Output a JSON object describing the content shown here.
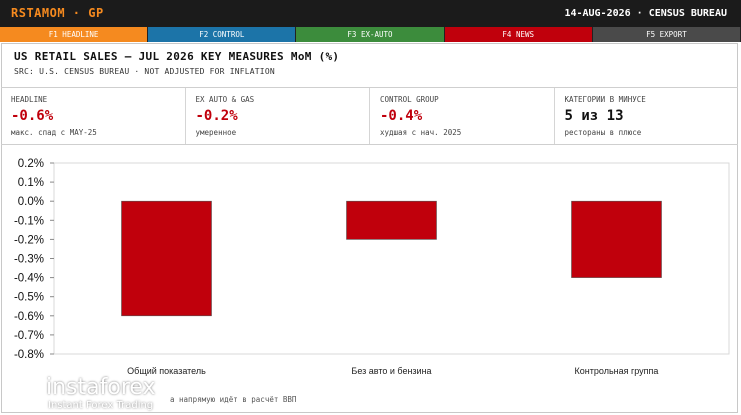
{
  "header": {
    "brand": "RSTAMOM · GP",
    "dateinfo": "14-AUG-2026 · CENSUS BUREAU"
  },
  "tabs": [
    {
      "label": "F1 HEADLINE",
      "color": "#f58a1f"
    },
    {
      "label": "F2 CONTROL",
      "color": "#1c74a8"
    },
    {
      "label": "F3 EX-AUTO",
      "color": "#3c8c3c"
    },
    {
      "label": "F4 NEWS",
      "color": "#c0000c"
    },
    {
      "label": "F5 EXPORT",
      "color": "#4a4a4a"
    }
  ],
  "panel": {
    "title": "US RETAIL SALES — JUL 2026 KEY MEASURES MoM (%)",
    "subtitle": "SRC: U.S. CENSUS BUREAU · NOT ADJUSTED FOR INFLATION"
  },
  "metrics": [
    {
      "label": "HEADLINE",
      "value": "-0.6%",
      "note": "макс. спад с MAY-25"
    },
    {
      "label": "EX AUTO & GAS",
      "value": "-0.2%",
      "note": "умеренное"
    },
    {
      "label": "CONTROL GROUP",
      "value": "-0.4%",
      "note": "худшая с нач. 2025"
    },
    {
      "label": "КАТЕГОРИИ В МИНУСЕ",
      "value": "5 из 13",
      "note": "рестораны в плюсе"
    }
  ],
  "chart_data": {
    "type": "bar",
    "categories": [
      "Общий показатель",
      "Без авто и бензина",
      "Контрольная группа"
    ],
    "values": [
      -0.6,
      -0.2,
      -0.4
    ],
    "ylim": [
      -0.8,
      0.2
    ],
    "yticks": [
      "0.2%",
      "0.1%",
      "0.0%",
      "-0.1%",
      "-0.2%",
      "-0.3%",
      "-0.4%",
      "-0.5%",
      "-0.6%",
      "-0.7%",
      "-0.8%"
    ],
    "bar_color": "#c0000c"
  },
  "footer": {
    "note": "а напрямую идёт в расчёт ВВП"
  },
  "watermark": {
    "brand": "instaforex",
    "tagline": "Instant Forex Trading"
  }
}
